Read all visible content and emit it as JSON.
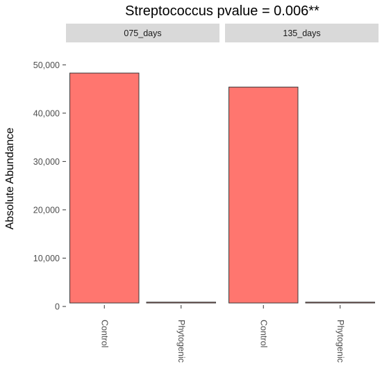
{
  "chart_data": {
    "type": "bar",
    "title": "Streptococcus pvalue = 0.006**",
    "xlabel": "",
    "ylabel": "Absolute Abundance",
    "ylim": [
      0,
      54500
    ],
    "yticks": [
      0,
      10000,
      20000,
      30000,
      40000,
      50000
    ],
    "ytick_labels": [
      "0",
      "10,000",
      "20,000",
      "30,000",
      "40,000",
      "50,000"
    ],
    "grid": false,
    "legend": "none",
    "bar_color": "#F8766D",
    "panels": [
      {
        "strip": "075_days",
        "categories": [
          "Control",
          "Phytogenic"
        ],
        "values": [
          48300,
          150
        ]
      },
      {
        "strip": "135_days",
        "categories": [
          "Control",
          "Phytogenic"
        ],
        "values": [
          45400,
          200
        ]
      }
    ]
  },
  "colors": {
    "bar_fill": "#FF766F",
    "bar_stroke": "#3a3a3a",
    "strip_bg": "#D9D9D9",
    "text": "#000000",
    "tick_text": "#4D4D4D"
  }
}
